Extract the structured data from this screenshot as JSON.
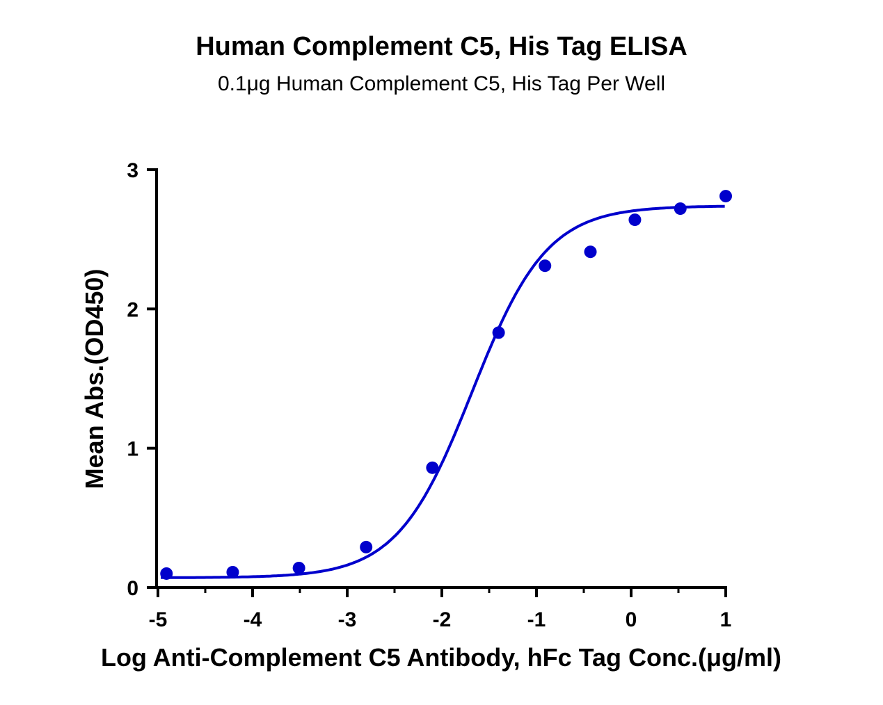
{
  "chart_data": {
    "type": "scatter",
    "title": "Human Complement C5, His Tag ELISA",
    "subtitle": "0.1μg Human Complement C5, His Tag Per Well",
    "xlabel": "Log Anti-Complement C5 Antibody, hFc Tag Conc.(μg/ml)",
    "ylabel": "Mean Abs.(OD450)",
    "xlim": [
      -5,
      1
    ],
    "ylim": [
      0,
      3
    ],
    "xticks": [
      "-5",
      "-4",
      "-3",
      "-2",
      "-1",
      "0",
      "1"
    ],
    "yticks": [
      "0",
      "1",
      "2",
      "3"
    ],
    "grid": false,
    "color": "#0000CC",
    "points": {
      "x": [
        -4.91,
        -4.21,
        -3.51,
        -2.8,
        -2.1,
        -1.4,
        -0.91,
        -0.43,
        0.04,
        0.52,
        1.0
      ],
      "y": [
        0.1,
        0.11,
        0.14,
        0.29,
        0.86,
        1.83,
        2.31,
        2.41,
        2.64,
        2.72,
        2.81
      ]
    },
    "fit": {
      "model": "4PL",
      "bottom": 0.07,
      "top": 2.74,
      "logEC50": -1.68,
      "hill": 1.1
    }
  }
}
